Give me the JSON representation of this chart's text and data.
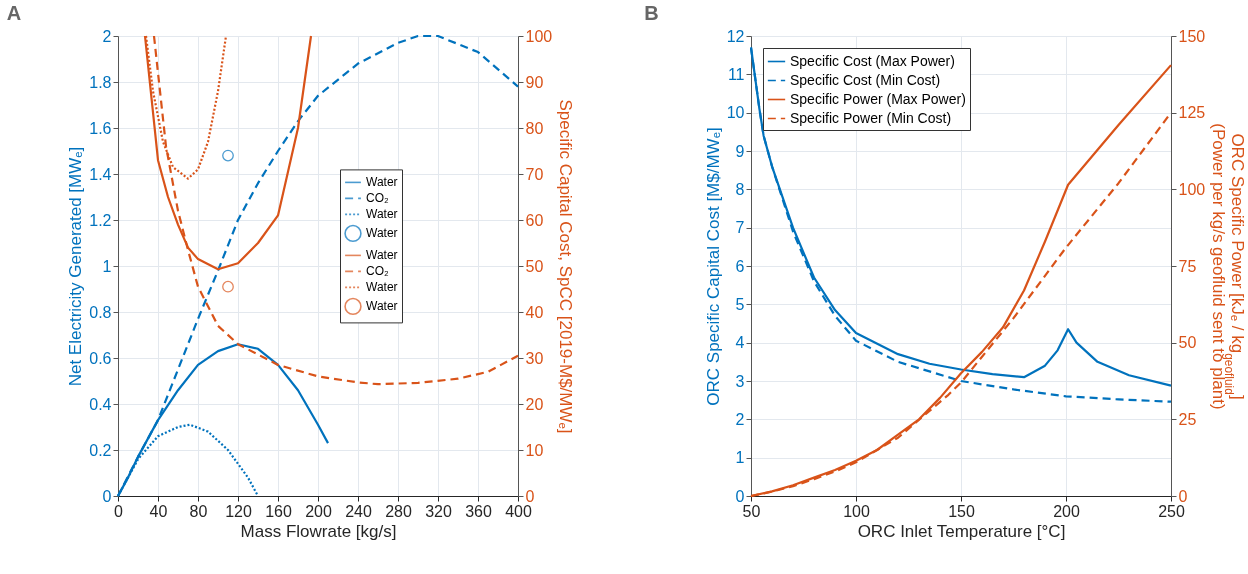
{
  "chart_data": [
    {
      "type": "line",
      "title": "A",
      "xlabel": "Mass Flowrate [kg/s]",
      "ylabel": "Net Electricity Generated [MWₑ]",
      "y2label": "Specific Capital Cost, SpCC [2019-M$/MWₑ]",
      "xlim": [
        0,
        400
      ],
      "xticks": [
        0,
        40,
        80,
        120,
        160,
        200,
        240,
        280,
        320,
        360,
        400
      ],
      "ylim": [
        0,
        2
      ],
      "yticks": [
        0,
        0.2,
        0.4,
        0.6,
        0.8,
        1,
        1.2,
        1.4,
        1.6,
        1.8,
        2
      ],
      "y2lim": [
        0,
        100
      ],
      "y2ticks": [
        0,
        10,
        20,
        30,
        40,
        50,
        60,
        70,
        80,
        90,
        100
      ],
      "grid": true,
      "legend": "right",
      "series": [
        {
          "name": "Water",
          "color": "#0072bd",
          "line_style": "solid",
          "x": [
            0,
            10,
            20,
            40,
            60,
            80,
            100,
            120,
            140,
            160,
            180,
            200,
            210
          ],
          "values": [
            0,
            0.08,
            0.17,
            0.33,
            0.46,
            0.57,
            0.63,
            0.66,
            0.64,
            0.57,
            0.46,
            0.31,
            0.23
          ]
        },
        {
          "name": "CO₂",
          "color": "#0072bd",
          "line_style": "dashed",
          "x": [
            0,
            20,
            40,
            60,
            80,
            100,
            120,
            140,
            160,
            180,
            200,
            240,
            280,
            300,
            320,
            360,
            400
          ],
          "values": [
            0,
            0.17,
            0.33,
            0.55,
            0.77,
            0.98,
            1.2,
            1.36,
            1.5,
            1.63,
            1.74,
            1.88,
            1.97,
            2,
            2,
            1.93,
            1.78
          ]
        },
        {
          "name": "Water",
          "color": "#0072bd",
          "line_style": "dotted",
          "x": [
            0,
            20,
            40,
            60,
            72,
            90,
            110,
            130,
            140
          ],
          "values": [
            0,
            0.16,
            0.26,
            0.3,
            0.31,
            0.28,
            0.2,
            0.08,
            0
          ]
        },
        {
          "name": "Water",
          "type": "scatter",
          "marker": "circle",
          "color": "#0072bd",
          "x": [
            110
          ],
          "values": [
            1.48
          ]
        },
        {
          "name": "Water",
          "color": "#d95319",
          "line_style": "solid",
          "axis": "y2",
          "x": [
            27,
            40,
            50,
            60,
            70,
            80,
            100,
            120,
            140,
            160,
            180,
            193
          ],
          "values": [
            100,
            73,
            65,
            59,
            54,
            51.5,
            49.3,
            50.6,
            55,
            61,
            80,
            100
          ]
        },
        {
          "name": "CO₂",
          "color": "#d95319",
          "line_style": "dashed",
          "axis": "y2",
          "x": [
            36,
            48,
            60,
            70,
            80,
            100,
            120,
            160,
            200,
            240,
            260,
            300,
            340,
            370,
            400
          ],
          "values": [
            100,
            76,
            62,
            53.5,
            45.5,
            37,
            33,
            28.5,
            26,
            24.7,
            24.3,
            24.6,
            25.5,
            27,
            30.5
          ]
        },
        {
          "name": "Water",
          "color": "#d95319",
          "line_style": "dotted",
          "axis": "y2",
          "x": [
            28,
            35,
            45,
            55,
            70,
            80,
            90,
            100,
            108
          ],
          "values": [
            100,
            88,
            77,
            71.5,
            69,
            71,
            77,
            88,
            100
          ]
        },
        {
          "name": "Water",
          "type": "scatter",
          "marker": "circle",
          "color": "#d95319",
          "axis": "y2",
          "x": [
            110
          ],
          "values": [
            45.5
          ]
        }
      ]
    },
    {
      "type": "line",
      "title": "B",
      "xlabel": "ORC Inlet Temperature [°C]",
      "ylabel": "ORC Specific Capital Cost [M$/MWₑ]",
      "y2label": [
        "ORC Specific Power [kJₑ / kg$_{geofluid}$]",
        "(Power per kg/s geofluid sent to plant)"
      ],
      "xlim": [
        50,
        250
      ],
      "xticks": [
        50,
        100,
        150,
        200,
        250
      ],
      "ylim": [
        0,
        12
      ],
      "yticks": [
        0,
        1,
        2,
        3,
        4,
        5,
        6,
        7,
        8,
        9,
        10,
        11,
        12
      ],
      "y2lim": [
        0,
        150
      ],
      "y2ticks": [
        0,
        25,
        50,
        75,
        100,
        125,
        150
      ],
      "grid": true,
      "legend": "top left",
      "series": [
        {
          "name": "Specific Cost (Max Power)",
          "color": "#0072bd",
          "line_style": "solid",
          "x": [
            50,
            52,
            54,
            56,
            60,
            70,
            80,
            90,
            100,
            120,
            135,
            150,
            165,
            180,
            190,
            196,
            201,
            205,
            215,
            230,
            250
          ],
          "values": [
            11.7,
            10.9,
            10.1,
            9.4,
            8.6,
            7,
            5.7,
            4.85,
            4.25,
            3.7,
            3.45,
            3.3,
            3.18,
            3.1,
            3.4,
            3.8,
            4.35,
            4,
            3.5,
            3.15,
            2.88
          ]
        },
        {
          "name": "Specific Cost (Min Cost)",
          "color": "#0072bd",
          "line_style": "dashed",
          "x": [
            50,
            52,
            54,
            56,
            60,
            70,
            80,
            90,
            100,
            120,
            135,
            150,
            175,
            200,
            225,
            250
          ],
          "values": [
            11.7,
            10.9,
            10.1,
            9.4,
            8.6,
            6.9,
            5.6,
            4.7,
            4.05,
            3.5,
            3.25,
            3,
            2.78,
            2.6,
            2.52,
            2.46
          ]
        },
        {
          "name": "Specific Power (Max Power)",
          "color": "#d95319",
          "line_style": "solid",
          "axis": "y2",
          "x": [
            50,
            60,
            70,
            80,
            90,
            100,
            110,
            120,
            130,
            140,
            150,
            160,
            170,
            180,
            190,
            201,
            225,
            250
          ],
          "values": [
            0,
            1.5,
            3.5,
            6,
            8.5,
            11.5,
            15,
            20,
            25,
            32,
            40,
            47,
            55,
            67,
            83,
            101.5,
            121,
            140.5
          ]
        },
        {
          "name": "Specific Power (Min Cost)",
          "color": "#d95319",
          "line_style": "dashed",
          "axis": "y2",
          "x": [
            50,
            60,
            70,
            80,
            90,
            100,
            120,
            144,
            150,
            175,
            200,
            225,
            250
          ],
          "values": [
            0,
            1.4,
            3.2,
            5.5,
            8,
            11,
            19,
            33,
            37,
            58,
            81,
            102,
            125
          ]
        }
      ]
    }
  ]
}
